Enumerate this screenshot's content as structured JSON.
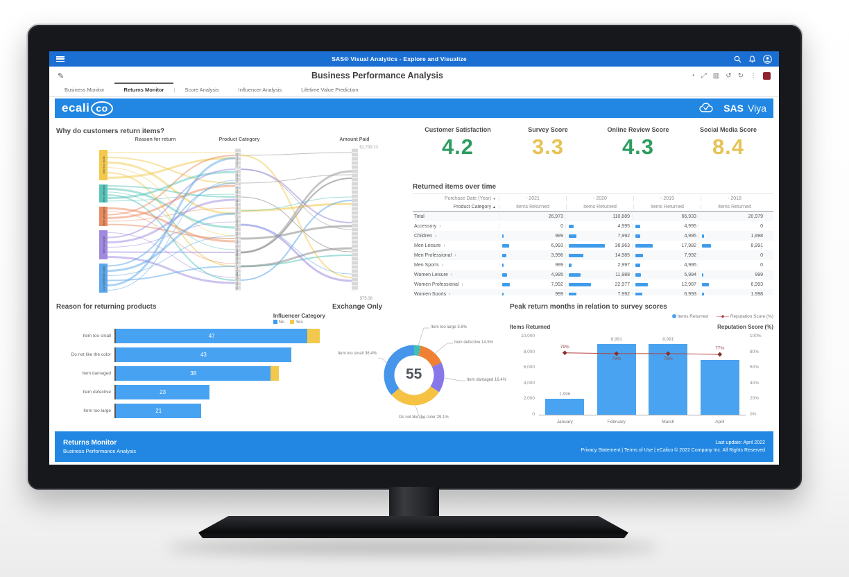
{
  "app_bar": {
    "title": "SAS® Visual Analytics - Explore and Visualize"
  },
  "doc_header": {
    "title": "Business Performance Analysis",
    "icons": [
      {
        "name": "insights-icon",
        "glyph": "◔"
      },
      {
        "name": "expand-icon",
        "glyph": "⤢"
      },
      {
        "name": "layout-icon",
        "glyph": "▥"
      },
      {
        "name": "undo-icon",
        "glyph": "↺"
      },
      {
        "name": "redo-icon",
        "glyph": "↻"
      },
      {
        "name": "more-options-icon",
        "glyph": "⋮"
      }
    ]
  },
  "tabs": [
    {
      "label": "Business Monitor",
      "active": false
    },
    {
      "label": "Returns Monitor",
      "active": true
    },
    {
      "label": "Score Analysis",
      "active": false
    },
    {
      "label": "Influencer Analysis",
      "active": false
    },
    {
      "label": "Lifetime Value Prediction",
      "active": false
    }
  ],
  "tab_separator": "|",
  "banner": {
    "logo_text": "ecali",
    "logo_suffix": "co",
    "sas": "SAS",
    "viya": "Viya"
  },
  "kpis": [
    {
      "label": "Customer Satisfaction",
      "value": "4.2",
      "color": "#2d9c5f"
    },
    {
      "label": "Survey Score",
      "value": "3.3",
      "color": "#e7c254"
    },
    {
      "label": "Online Review Score",
      "value": "4.3",
      "color": "#2d9c5f"
    },
    {
      "label": "Social Media Score",
      "value": "8.4",
      "color": "#e7c254"
    }
  ],
  "chart_data": [
    {
      "type": "flow",
      "title": "Why do customers return items?",
      "axes": [
        "Reason for return",
        "Product Category",
        "Amount Paid"
      ],
      "amount_max": "$2,799.23",
      "amount_min": "$75.38",
      "nodes": [
        {
          "label": "Item too small",
          "color": "#f2c94c"
        },
        {
          "label": "Item defective",
          "color": "#56c5ba"
        },
        {
          "label": "Item damaged",
          "color": "#e98a5f"
        },
        {
          "label": "Item too large",
          "color": "#a08ae0"
        },
        {
          "label": "Do not like the color",
          "color": "#5ba7ea"
        }
      ],
      "middle_categories": [
        "Accessory",
        "Children",
        "Men Leisure",
        "Men Professional",
        "Men Sports",
        "Women Leisure",
        "Women Professional",
        "Women Sports"
      ]
    },
    {
      "type": "table",
      "title": "Returned items over time",
      "col_dim": "Purchase Date (Year)",
      "row_dim": "Product Category",
      "measure": "Items Returned",
      "years": [
        "- 2021",
        "- 2020",
        "- 2019",
        "- 2018"
      ],
      "rows": [
        {
          "category": "Total",
          "values": [
            "26,973",
            "110,889",
            "66,933",
            "20,979"
          ]
        },
        {
          "category": "Accessory",
          "values": [
            "0",
            "4,995",
            "4,995",
            "0"
          ]
        },
        {
          "category": "Children",
          "values": [
            "999",
            "7,992",
            "4,995",
            "1,998"
          ]
        },
        {
          "category": "Men Leisure",
          "values": [
            "6,993",
            "36,963",
            "17,982",
            "8,991"
          ]
        },
        {
          "category": "Men Professional",
          "values": [
            "3,996",
            "14,985",
            "7,992",
            "0"
          ]
        },
        {
          "category": "Men Sports",
          "values": [
            "999",
            "2,997",
            "4,995",
            "0"
          ]
        },
        {
          "category": "Women Leisure",
          "values": [
            "4,995",
            "11,988",
            "5,994",
            "999"
          ]
        },
        {
          "category": "Women Professional",
          "values": [
            "7,992",
            "22,977",
            "12,987",
            "6,993"
          ]
        },
        {
          "category": "Women Sports",
          "values": [
            "999",
            "7,992",
            "6,993",
            "1,998"
          ]
        }
      ]
    },
    {
      "type": "bar",
      "title": "Reason for returning products",
      "legend_title": "Influencer Category",
      "legend": [
        {
          "label": "No",
          "color": "#3f9ced"
        },
        {
          "label": "Yes",
          "color": "#f2c94c"
        }
      ],
      "categories": [
        "Item too small",
        "Do not like the color",
        "Item damaged",
        "Item defective",
        "Item too large"
      ],
      "series": [
        {
          "name": "No",
          "values": [
            47,
            43,
            38,
            23,
            21
          ]
        },
        {
          "name": "Yes",
          "values": [
            3,
            0,
            2,
            0,
            0
          ]
        }
      ],
      "value_labels": [
        "47",
        "43",
        "38",
        "23",
        "21"
      ]
    },
    {
      "type": "donut",
      "title": "Exchange Only",
      "center_value": "55",
      "slices": [
        {
          "label": "Item too large 3.6%",
          "pct": 3.6,
          "color": "#3fbfb4"
        },
        {
          "label": "Item defective 14.5%",
          "pct": 14.5,
          "color": "#f08033"
        },
        {
          "label": "Item damaged 16.4%",
          "pct": 16.4,
          "color": "#8678e8"
        },
        {
          "label": "Do not like the color 29.1%",
          "pct": 29.1,
          "color": "#f5c244"
        },
        {
          "label": "Item too small 36.4%",
          "pct": 36.4,
          "color": "#4596ea"
        }
      ]
    },
    {
      "type": "bar+line",
      "title": "Peak return months in relation to survey scores",
      "categories": [
        "January",
        "February",
        "March",
        "April"
      ],
      "bar_series": {
        "name": "Items Returned",
        "color": "#4aa3f0",
        "values": [
          1996,
          8991,
          8991,
          6993
        ],
        "labels": [
          "1,996",
          "8,991",
          "8,991",
          ""
        ]
      },
      "line_series": {
        "name": "Reputation Score (%)",
        "color": "#b5433f",
        "values": [
          79,
          78,
          78,
          77
        ],
        "labels": [
          "79%",
          "78%",
          "78%",
          "77%"
        ]
      },
      "y_left": {
        "title": "Items Returned",
        "max": 10000,
        "ticks": [
          "10,000",
          "8,000",
          "6,000",
          "4,000",
          "2,000",
          "0"
        ]
      },
      "y_right": {
        "title": "Reputation Score (%)",
        "max": 100,
        "ticks": [
          "100%",
          "80%",
          "60%",
          "40%",
          "20%",
          "0%"
        ]
      }
    }
  ],
  "footer": {
    "title": "Returns Monitor",
    "subtitle": "Business Performance Analysis",
    "last_update": "Last update: April 2022",
    "legal": "Privacy Statement | Terms of Use | eCalico © 2022 Company Inc. All Rights Reserved"
  }
}
